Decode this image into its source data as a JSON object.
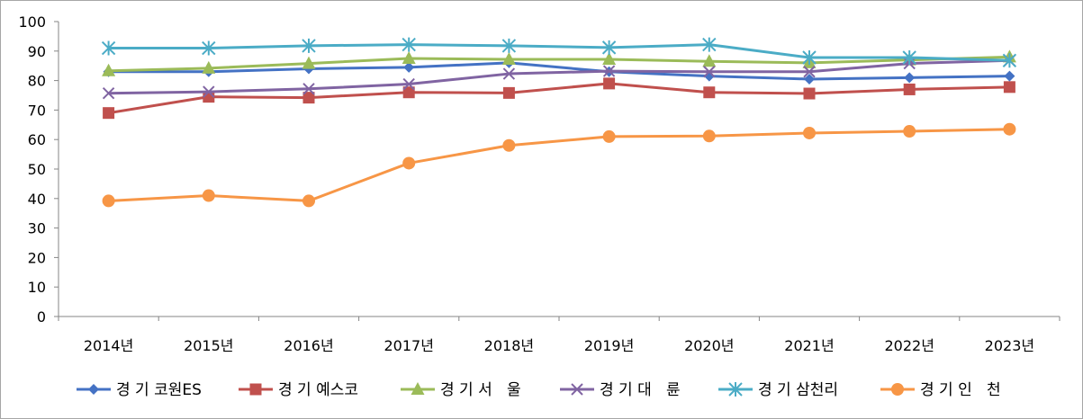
{
  "chart_data": {
    "type": "line",
    "title": "",
    "xlabel": "",
    "ylabel": "",
    "categories": [
      "2014년",
      "2015년",
      "2016년",
      "2017년",
      "2018년",
      "2019년",
      "2020년",
      "2021년",
      "2022년",
      "2023년"
    ],
    "ylim": [
      0,
      100
    ],
    "yticks": [
      "0",
      "10",
      "20",
      "30",
      "40",
      "50",
      "60",
      "70",
      "80",
      "90",
      "100"
    ],
    "grid": false,
    "legend_position": "bottom",
    "series": [
      {
        "name": "경 기 코원ES",
        "marker": "diamond",
        "color": "#4472c4",
        "values": [
          83,
          83,
          84,
          84.5,
          86,
          83,
          81.5,
          80.5,
          81,
          81.5
        ]
      },
      {
        "name": "경 기 예스코",
        "marker": "square",
        "color": "#c0504d",
        "values": [
          69,
          74.5,
          74.2,
          76,
          75.8,
          79,
          76,
          75.6,
          77,
          77.8
        ]
      },
      {
        "name": "경 기 서   울",
        "marker": "triangle",
        "color": "#9bbb59",
        "values": [
          83.3,
          84.2,
          85.8,
          87.5,
          87.2,
          87.2,
          86.5,
          86,
          87,
          88
        ]
      },
      {
        "name": "경 기 대   륜",
        "marker": "x",
        "color": "#8064a2",
        "values": [
          75.7,
          76.2,
          77.2,
          78.8,
          82.3,
          83.2,
          83,
          83,
          85.8,
          86.8
        ]
      },
      {
        "name": "경 기 삼천리",
        "marker": "star",
        "color": "#4bacc6",
        "values": [
          91,
          91,
          91.8,
          92.2,
          91.8,
          91.2,
          92.2,
          87.8,
          87.8,
          86.8
        ]
      },
      {
        "name": "경 기 인   천",
        "marker": "circle",
        "color": "#f79646",
        "values": [
          39.2,
          41,
          39.2,
          52,
          58,
          61,
          61.2,
          62.2,
          62.8,
          63.5
        ]
      }
    ]
  }
}
